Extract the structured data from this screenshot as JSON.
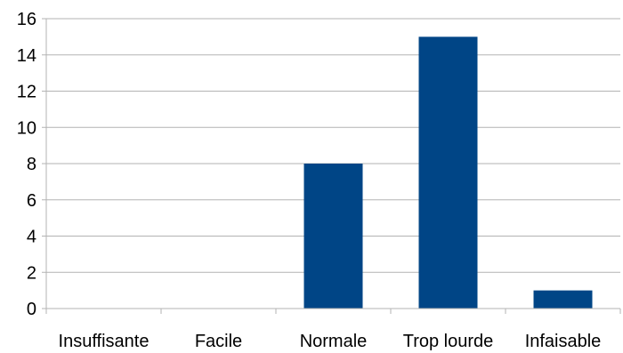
{
  "chart_data": {
    "type": "bar",
    "categories": [
      "Insuffisante",
      "Facile",
      "Normale",
      "Trop lourde",
      "Infaisable"
    ],
    "values": [
      0,
      0,
      8,
      15,
      1
    ],
    "ylim": [
      0,
      16
    ],
    "yticks": [
      0,
      2,
      4,
      6,
      8,
      10,
      12,
      14,
      16
    ],
    "grid": true,
    "bar_color": "#004586"
  }
}
